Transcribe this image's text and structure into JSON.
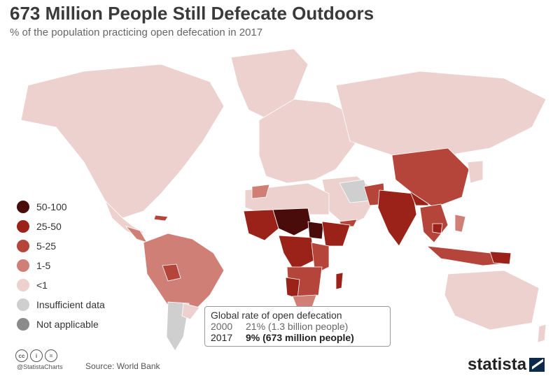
{
  "title": "673 Million People Still Defecate Outdoors",
  "subtitle": "% of the population practicing open defecation in 2017",
  "colors": {
    "c50_100": "#4a0b0b",
    "c25_50": "#9b2218",
    "c5_25": "#b5453a",
    "c1_5": "#cf7f75",
    "lt1": "#ecd1cf",
    "insufficient": "#cfcfcf",
    "na": "#8a8a8a"
  },
  "legend": {
    "items": [
      {
        "label": "50-100",
        "color": "#4a0b0b"
      },
      {
        "label": "25-50",
        "color": "#9b2218"
      },
      {
        "label": "5-25",
        "color": "#b5453a"
      },
      {
        "label": "1-5",
        "color": "#cf7f75"
      },
      {
        "label": "<1",
        "color": "#ecd1cf"
      },
      {
        "label": "Insufficient data",
        "color": "#cfcfcf"
      },
      {
        "label": "Not applicable",
        "color": "#8a8a8a"
      }
    ]
  },
  "rate_box": {
    "title": "Global rate of open defecation",
    "rows": [
      {
        "year": "2000",
        "value": "21% (1.3 billion people)"
      },
      {
        "year": "2017",
        "value": "9% (673 million people)"
      }
    ]
  },
  "footer": {
    "cc_icons": [
      "cc",
      "i",
      "="
    ],
    "handle": "@StatistaCharts",
    "source": "Source: World Bank",
    "brand": "statista"
  }
}
